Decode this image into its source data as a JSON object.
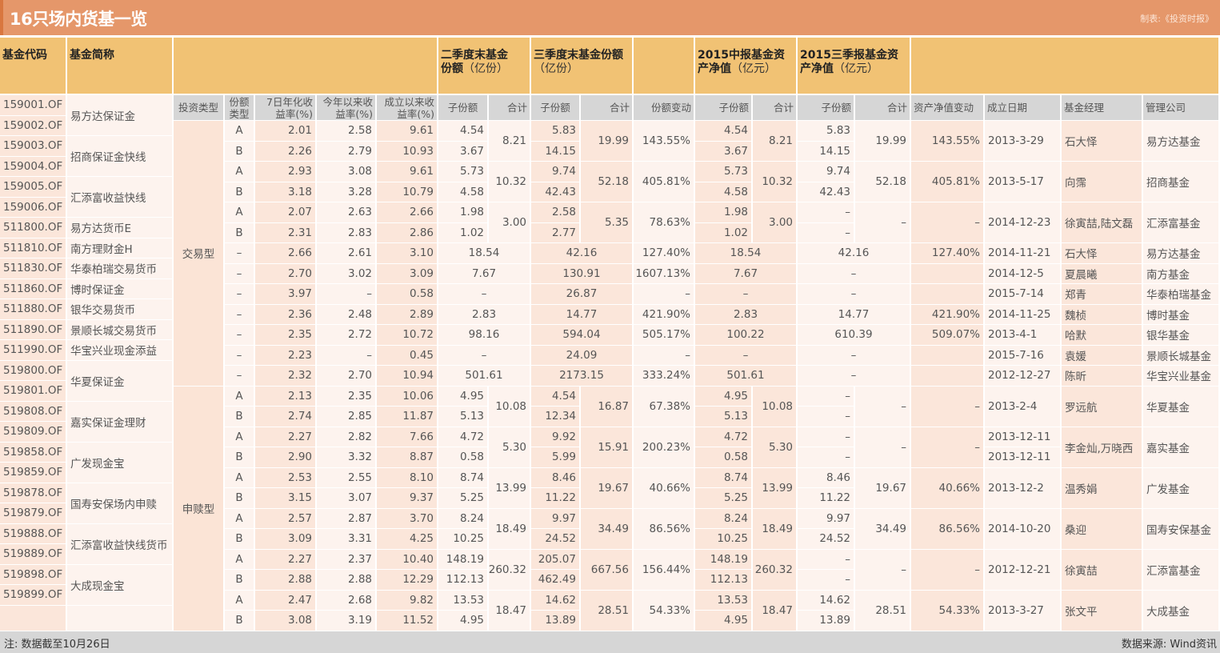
{
  "title": "16只场内货基一览",
  "credit": "制表:《投资时报》",
  "header": {
    "code": "基金代码",
    "name": "基金简称",
    "q2_shares": {
      "line1": "二季度末基金",
      "line2_bold": "份额",
      "unit": "（亿份）"
    },
    "q3_shares": {
      "line1": "三季度末基金份额",
      "line2_bold": "",
      "unit": "（亿份）"
    },
    "h1_nav": {
      "line1": "2015中报基金资",
      "line2_bold": "产净值",
      "unit": "（亿元）"
    },
    "q3_nav": {
      "line1": "2015三季报基金资",
      "line2_bold": "产净值",
      "unit": "（亿元）"
    }
  },
  "subheader": {
    "invest_type": "投资类型",
    "share_type": "份额类型",
    "yield_7d": "7日年化收益率(%)",
    "ytd_return": "今年以来收益率(%)",
    "since_inception": "成立以来收益率(%)",
    "q2_sub": "子份额",
    "q2_total": "合计",
    "q3_sub": "子份额",
    "q3_total": "合计",
    "share_change": "份额变动",
    "h1_sub": "子份额",
    "h1_total": "合计",
    "q3n_sub": "子份额",
    "q3n_total": "合计",
    "nav_change": "资产净值变动",
    "date": "成立日期",
    "manager": "基金经理",
    "company": "管理公司"
  },
  "fund_codes": [
    "159001.OF",
    "159002.OF",
    "159003.OF",
    "159004.OF",
    "159005.OF",
    "159006.OF",
    "511800.OF",
    "511810.OF",
    "511830.OF",
    "511860.OF",
    "511880.OF",
    "511890.OF",
    "511990.OF",
    "519800.OF",
    "519801.OF",
    "519808.OF",
    "519809.OF",
    "519858.OF",
    "519859.OF",
    "519878.OF",
    "519879.OF",
    "519888.OF",
    "519889.OF",
    "519898.OF",
    "519899.OF"
  ],
  "fund_names": [
    {
      "name": "易方达保证金",
      "rows": 2
    },
    {
      "name": "招商保证金快线",
      "rows": 2
    },
    {
      "name": "汇添富收益快线",
      "rows": 2
    },
    {
      "name": "易方达货币E",
      "rows": 1
    },
    {
      "name": "南方理财金H",
      "rows": 1
    },
    {
      "name": "华泰柏瑞交易货币",
      "rows": 1
    },
    {
      "name": "博时保证金",
      "rows": 1
    },
    {
      "name": "银华交易货币",
      "rows": 1
    },
    {
      "name": "景顺长城交易货币",
      "rows": 1
    },
    {
      "name": "华宝兴业现金添益",
      "rows": 1
    },
    {
      "name": "华夏保证金",
      "rows": 2
    },
    {
      "name": "嘉实保证金理财",
      "rows": 2
    },
    {
      "name": "广发现金宝",
      "rows": 2
    },
    {
      "name": "国寿安保场内申赎",
      "rows": 2
    },
    {
      "name": "汇添富收益快线货币",
      "rows": 2
    },
    {
      "name": "大成现金宝",
      "rows": 2
    }
  ],
  "invest_types": [
    {
      "label": "交易型",
      "rows": 13
    },
    {
      "label": "申赎型",
      "rows": 12
    }
  ],
  "groups": [
    {
      "rows": [
        {
          "share_type": "A",
          "yield_7d": "2.01",
          "ytd": "2.58",
          "since": "9.61",
          "q2_sub": "4.54",
          "q3_sub": "5.83",
          "h1_sub": "4.54",
          "q3n_sub": "5.83"
        },
        {
          "share_type": "B",
          "yield_7d": "2.26",
          "ytd": "2.79",
          "since": "10.93",
          "q2_sub": "3.67",
          "q3_sub": "14.15",
          "h1_sub": "3.67",
          "q3n_sub": "14.15"
        }
      ],
      "q2_total": "8.21",
      "q3_total": "19.99",
      "share_change": "143.55%",
      "h1_total": "8.21",
      "q3n_total": "19.99",
      "nav_change": "143.55%",
      "date": "2013-3-29",
      "manager": "石大怿",
      "company": "易方达基金"
    },
    {
      "rows": [
        {
          "share_type": "A",
          "yield_7d": "2.93",
          "ytd": "3.08",
          "since": "9.61",
          "q2_sub": "5.73",
          "q3_sub": "9.74",
          "h1_sub": "5.73",
          "q3n_sub": "9.74"
        },
        {
          "share_type": "B",
          "yield_7d": "3.18",
          "ytd": "3.28",
          "since": "10.79",
          "q2_sub": "4.58",
          "q3_sub": "42.43",
          "h1_sub": "4.58",
          "q3n_sub": "42.43"
        }
      ],
      "q2_total": "10.32",
      "q3_total": "52.18",
      "share_change": "405.81%",
      "h1_total": "10.32",
      "q3n_total": "52.18",
      "nav_change": "405.81%",
      "date": "2013-5-17",
      "manager": "向霈",
      "company": "招商基金"
    },
    {
      "rows": [
        {
          "share_type": "A",
          "yield_7d": "2.07",
          "ytd": "2.63",
          "since": "2.66",
          "q2_sub": "1.98",
          "q3_sub": "2.58",
          "h1_sub": "1.98",
          "q3n_sub": "–"
        },
        {
          "share_type": "B",
          "yield_7d": "2.31",
          "ytd": "2.83",
          "since": "2.86",
          "q2_sub": "1.02",
          "q3_sub": "2.77",
          "h1_sub": "1.02",
          "q3n_sub": "–"
        }
      ],
      "q2_total": "3.00",
      "q3_total": "5.35",
      "share_change": "78.63%",
      "h1_total": "3.00",
      "q3n_total": "–",
      "nav_change": "–",
      "date": "2014-12-23",
      "manager": "徐寅喆,陆文磊",
      "company": "汇添富基金"
    },
    {
      "rows": [
        {
          "share_type": "–",
          "yield_7d": "2.66",
          "ytd": "2.61",
          "since": "3.10"
        }
      ],
      "q2_total": "18.54",
      "q3_total": "42.16",
      "share_change": "127.40%",
      "h1_total": "18.54",
      "q3n_total": "42.16",
      "nav_change": "127.40%",
      "date": "2014-11-21",
      "manager": "石大怿",
      "company": "易方达基金"
    },
    {
      "rows": [
        {
          "share_type": "–",
          "yield_7d": "2.70",
          "ytd": "3.02",
          "since": "3.09"
        }
      ],
      "q2_total": "7.67",
      "q3_total": "130.91",
      "share_change": "1607.13%",
      "h1_total": "7.67",
      "q3n_total": "–",
      "nav_change": "",
      "date": "2014-12-5",
      "manager": "夏晨曦",
      "company": "南方基金"
    },
    {
      "rows": [
        {
          "share_type": "–",
          "yield_7d": "3.97",
          "ytd": "–",
          "since": "0.58"
        }
      ],
      "q2_total": "–",
      "q3_total": "26.87",
      "share_change": "–",
      "h1_total": "–",
      "q3n_total": "–",
      "nav_change": "",
      "date": "2015-7-14",
      "manager": "郑青",
      "company": "华泰柏瑞基金"
    },
    {
      "rows": [
        {
          "share_type": "–",
          "yield_7d": "2.36",
          "ytd": "2.48",
          "since": "2.89"
        }
      ],
      "q2_total": "2.83",
      "q3_total": "14.77",
      "share_change": "421.90%",
      "h1_total": "2.83",
      "q3n_total": "14.77",
      "nav_change": "421.90%",
      "date": "2014-11-25",
      "manager": "魏桢",
      "company": "博时基金"
    },
    {
      "rows": [
        {
          "share_type": "–",
          "yield_7d": "2.35",
          "ytd": "2.72",
          "since": "10.72"
        }
      ],
      "q2_total": "98.16",
      "q3_total": "594.04",
      "share_change": "505.17%",
      "h1_total": "100.22",
      "q3n_total": "610.39",
      "nav_change": "509.07%",
      "date": "2013-4-1",
      "manager": "哈默",
      "company": "银华基金"
    },
    {
      "rows": [
        {
          "share_type": "–",
          "yield_7d": "2.23",
          "ytd": "–",
          "since": "0.45"
        }
      ],
      "q2_total": "–",
      "q3_total": "24.09",
      "share_change": "–",
      "h1_total": "–",
      "q3n_total": "–",
      "nav_change": "",
      "date": "2015-7-16",
      "manager": "袁媛",
      "company": "景顺长城基金"
    },
    {
      "rows": [
        {
          "share_type": "–",
          "yield_7d": "2.32",
          "ytd": "2.70",
          "since": "10.94"
        }
      ],
      "q2_total": "501.61",
      "q3_total": "2173.15",
      "share_change": "333.24%",
      "h1_total": "501.61",
      "q3n_total": "–",
      "nav_change": "",
      "date": "2012-12-27",
      "manager": "陈昕",
      "company": "华宝兴业基金"
    },
    {
      "rows": [
        {
          "share_type": "A",
          "yield_7d": "2.13",
          "ytd": "2.35",
          "since": "10.06",
          "q2_sub": "4.95",
          "q3_sub": "4.54",
          "h1_sub": "4.95",
          "q3n_sub": "–"
        },
        {
          "share_type": "B",
          "yield_7d": "2.74",
          "ytd": "2.85",
          "since": "11.87",
          "q2_sub": "5.13",
          "q3_sub": "12.34",
          "h1_sub": "5.13",
          "q3n_sub": "–"
        }
      ],
      "q2_total": "10.08",
      "q3_total": "16.87",
      "share_change": "67.38%",
      "h1_total": "10.08",
      "q3n_total": "–",
      "nav_change": "–",
      "date": "2013-2-4",
      "manager": "罗远航",
      "company": "华夏基金"
    },
    {
      "rows": [
        {
          "share_type": "A",
          "yield_7d": "2.27",
          "ytd": "2.82",
          "since": "7.66",
          "q2_sub": "4.72",
          "q3_sub": "9.92",
          "h1_sub": "4.72",
          "q3n_sub": "–",
          "date": "2013-12-11"
        },
        {
          "share_type": "B",
          "yield_7d": "2.90",
          "ytd": "3.32",
          "since": "8.87",
          "q2_sub": "0.58",
          "q3_sub": "5.99",
          "h1_sub": "0.58",
          "q3n_sub": "–",
          "date": "2013-12-11"
        }
      ],
      "q2_total": "5.30",
      "q3_total": "15.91",
      "share_change": "200.23%",
      "h1_total": "5.30",
      "q3n_total": "–",
      "nav_change": "–",
      "manager": "李金灿,万晓西",
      "company": "嘉实基金"
    },
    {
      "rows": [
        {
          "share_type": "A",
          "yield_7d": "2.53",
          "ytd": "2.55",
          "since": "8.10",
          "q2_sub": "8.74",
          "q3_sub": "8.46",
          "h1_sub": "8.74",
          "q3n_sub": "8.46"
        },
        {
          "share_type": "B",
          "yield_7d": "3.15",
          "ytd": "3.07",
          "since": "9.37",
          "q2_sub": "5.25",
          "q3_sub": "11.22",
          "h1_sub": "5.25",
          "q3n_sub": "11.22"
        }
      ],
      "q2_total": "13.99",
      "q3_total": "19.67",
      "share_change": "40.66%",
      "h1_total": "13.99",
      "q3n_total": "19.67",
      "nav_change": "40.66%",
      "date": "2013-12-2",
      "manager": "温秀娟",
      "company": "广发基金"
    },
    {
      "rows": [
        {
          "share_type": "A",
          "yield_7d": "2.57",
          "ytd": "2.87",
          "since": "3.70",
          "q2_sub": "8.24",
          "q3_sub": "9.97",
          "h1_sub": "8.24",
          "q3n_sub": "9.97"
        },
        {
          "share_type": "B",
          "yield_7d": "3.09",
          "ytd": "3.31",
          "since": "4.25",
          "q2_sub": "10.25",
          "q3_sub": "24.52",
          "h1_sub": "10.25",
          "q3n_sub": "24.52"
        }
      ],
      "q2_total": "18.49",
      "q3_total": "34.49",
      "share_change": "86.56%",
      "h1_total": "18.49",
      "q3n_total": "34.49",
      "nav_change": "86.56%",
      "date": "2014-10-20",
      "manager": "桑迎",
      "company": "国寿安保基金"
    },
    {
      "rows": [
        {
          "share_type": "A",
          "yield_7d": "2.27",
          "ytd": "2.37",
          "since": "10.40",
          "q2_sub": "148.19",
          "q3_sub": "205.07",
          "h1_sub": "148.19",
          "q3n_sub": "–"
        },
        {
          "share_type": "B",
          "yield_7d": "2.88",
          "ytd": "2.88",
          "since": "12.29",
          "q2_sub": "112.13",
          "q3_sub": "462.49",
          "h1_sub": "112.13",
          "q3n_sub": "–"
        }
      ],
      "q2_total": "260.32",
      "q3_total": "667.56",
      "share_change": "156.44%",
      "h1_total": "260.32",
      "q3n_total": "–",
      "nav_change": "–",
      "date": "2012-12-21",
      "manager": "徐寅喆",
      "company": "汇添富基金"
    },
    {
      "rows": [
        {
          "share_type": "A",
          "yield_7d": "2.47",
          "ytd": "2.68",
          "since": "9.82",
          "q2_sub": "13.53",
          "q3_sub": "14.62",
          "h1_sub": "13.53",
          "q3n_sub": "14.62"
        },
        {
          "share_type": "B",
          "yield_7d": "3.08",
          "ytd": "3.19",
          "since": "11.52",
          "q2_sub": "4.95",
          "q3_sub": "13.89",
          "h1_sub": "4.95",
          "q3n_sub": "13.89"
        }
      ],
      "q2_total": "18.47",
      "q3_total": "28.51",
      "share_change": "54.33%",
      "h1_total": "18.47",
      "q3n_total": "28.51",
      "nav_change": "54.33%",
      "date": "2013-3-27",
      "manager": "张文平",
      "company": "大成基金"
    }
  ],
  "footer": {
    "note": "注: 数据截至10月26日",
    "source": "数据来源: Wind资讯"
  }
}
